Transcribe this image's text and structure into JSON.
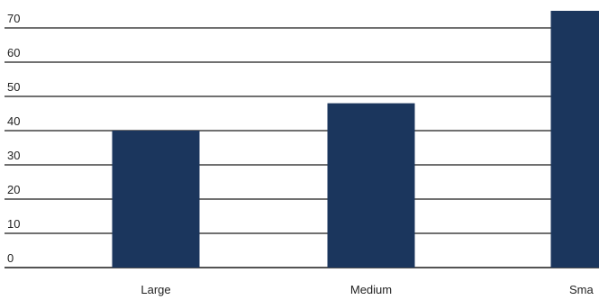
{
  "chart_data": {
    "type": "bar",
    "title": "",
    "xlabel": "",
    "ylabel": "",
    "categories": [
      "Large",
      "Medium",
      "Small"
    ],
    "category_labels_visible": [
      "Large",
      "Medium",
      "Sma"
    ],
    "series": [
      {
        "values": [
          40,
          48,
          75
        ]
      }
    ],
    "ylim": [
      0,
      75
    ],
    "yticks": [
      0,
      10,
      20,
      30,
      40,
      50,
      60,
      70
    ],
    "grid": "horizontal",
    "legend": "none",
    "colors": {
      "bar": "#1b365d",
      "grid": "#1a1a1a",
      "text": "#222222"
    }
  }
}
